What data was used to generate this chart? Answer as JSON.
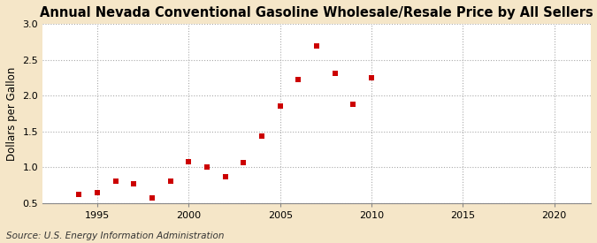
{
  "title": "Annual Nevada Conventional Gasoline Wholesale/Resale Price by All Sellers",
  "ylabel": "Dollars per Gallon",
  "source": "Source: U.S. Energy Information Administration",
  "years": [
    1994,
    1995,
    1996,
    1997,
    1998,
    1999,
    2000,
    2001,
    2002,
    2003,
    2004,
    2005,
    2006,
    2007,
    2008,
    2009,
    2010
  ],
  "values": [
    0.62,
    0.65,
    0.8,
    0.77,
    0.57,
    0.8,
    1.08,
    1.0,
    0.87,
    1.07,
    1.44,
    1.86,
    2.22,
    2.7,
    2.31,
    1.88,
    2.25
  ],
  "marker_color": "#cc0000",
  "marker_size": 4,
  "fig_bg_color": "#f5e6c8",
  "plot_bg_color": "#ffffff",
  "grid_color": "#aaaaaa",
  "xlim": [
    1992,
    2022
  ],
  "ylim": [
    0.5,
    3.0
  ],
  "xticks": [
    1995,
    2000,
    2005,
    2010,
    2015,
    2020
  ],
  "yticks": [
    0.5,
    1.0,
    1.5,
    2.0,
    2.5,
    3.0
  ],
  "title_fontsize": 10.5,
  "label_fontsize": 8.5,
  "tick_fontsize": 8,
  "source_fontsize": 7.5
}
